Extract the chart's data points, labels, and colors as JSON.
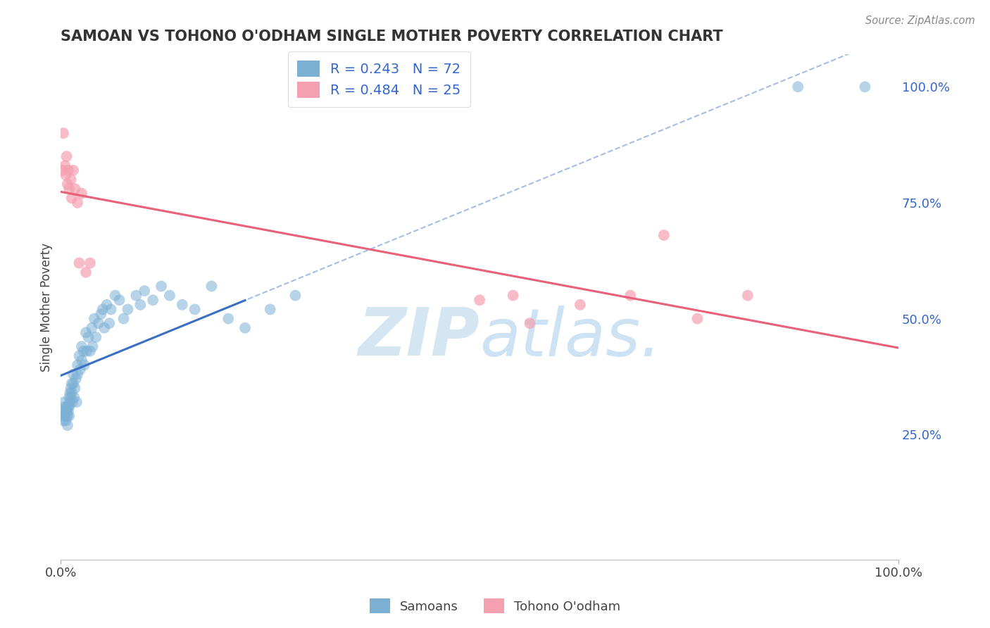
{
  "title": "SAMOAN VS TOHONO O'ODHAM SINGLE MOTHER POVERTY CORRELATION CHART",
  "source": "Source: ZipAtlas.com",
  "ylabel": "Single Mother Poverty",
  "blue_label": "Samoans",
  "pink_label": "Tohono O'odham",
  "blue_R": 0.243,
  "blue_N": 72,
  "pink_R": 0.484,
  "pink_N": 25,
  "blue_color": "#7BAFD4",
  "pink_color": "#F4A0B0",
  "blue_line_color": "#3A6FC4",
  "pink_line_color": "#E8607A",
  "background_color": "#FFFFFF",
  "grid_color": "#E0E0E0",
  "title_color": "#333333",
  "legend_text_color": "#3366CC",
  "axis_label_color": "#444444",
  "right_tick_color": "#3366CC",
  "watermark_color": "#D0E4F0",
  "blue_x": [
    0.002,
    0.003,
    0.004,
    0.004,
    0.005,
    0.005,
    0.006,
    0.006,
    0.007,
    0.007,
    0.008,
    0.008,
    0.009,
    0.009,
    0.01,
    0.01,
    0.01,
    0.011,
    0.011,
    0.012,
    0.012,
    0.013,
    0.013,
    0.014,
    0.015,
    0.015,
    0.016,
    0.017,
    0.018,
    0.019,
    0.02,
    0.02,
    0.022,
    0.023,
    0.025,
    0.025,
    0.027,
    0.028,
    0.03,
    0.031,
    0.033,
    0.035,
    0.037,
    0.038,
    0.04,
    0.042,
    0.045,
    0.048,
    0.05,
    0.052,
    0.055,
    0.058,
    0.06,
    0.065,
    0.07,
    0.075,
    0.08,
    0.09,
    0.095,
    0.1,
    0.11,
    0.12,
    0.13,
    0.145,
    0.16,
    0.18,
    0.2,
    0.22,
    0.25,
    0.28,
    0.88,
    0.96
  ],
  "blue_y": [
    0.3,
    0.28,
    0.32,
    0.29,
    0.31,
    0.3,
    0.29,
    0.28,
    0.3,
    0.31,
    0.29,
    0.27,
    0.31,
    0.3,
    0.33,
    0.31,
    0.29,
    0.34,
    0.32,
    0.35,
    0.33,
    0.36,
    0.34,
    0.32,
    0.38,
    0.36,
    0.33,
    0.35,
    0.37,
    0.32,
    0.4,
    0.38,
    0.42,
    0.39,
    0.44,
    0.41,
    0.43,
    0.4,
    0.47,
    0.43,
    0.46,
    0.43,
    0.48,
    0.44,
    0.5,
    0.46,
    0.49,
    0.51,
    0.52,
    0.48,
    0.53,
    0.49,
    0.52,
    0.55,
    0.54,
    0.5,
    0.52,
    0.55,
    0.53,
    0.56,
    0.54,
    0.57,
    0.55,
    0.53,
    0.52,
    0.57,
    0.5,
    0.48,
    0.52,
    0.55,
    1.0,
    1.0
  ],
  "pink_x": [
    0.002,
    0.003,
    0.005,
    0.006,
    0.007,
    0.008,
    0.009,
    0.01,
    0.012,
    0.013,
    0.015,
    0.017,
    0.02,
    0.022,
    0.025,
    0.03,
    0.035,
    0.5,
    0.54,
    0.56,
    0.62,
    0.68,
    0.72,
    0.76,
    0.82
  ],
  "pink_y": [
    0.82,
    0.9,
    0.83,
    0.81,
    0.85,
    0.79,
    0.82,
    0.78,
    0.8,
    0.76,
    0.82,
    0.78,
    0.75,
    0.62,
    0.77,
    0.6,
    0.62,
    0.54,
    0.55,
    0.49,
    0.53,
    0.55,
    0.68,
    0.5,
    0.55
  ],
  "xlim": [
    0.0,
    1.0
  ],
  "ylim": [
    -0.02,
    1.07
  ],
  "yticks": [
    0.25,
    0.5,
    0.75,
    1.0
  ],
  "ytick_labels": [
    "25.0%",
    "50.0%",
    "75.0%",
    "100.0%"
  ],
  "xtick_labels": [
    "0.0%",
    "100.0%"
  ]
}
